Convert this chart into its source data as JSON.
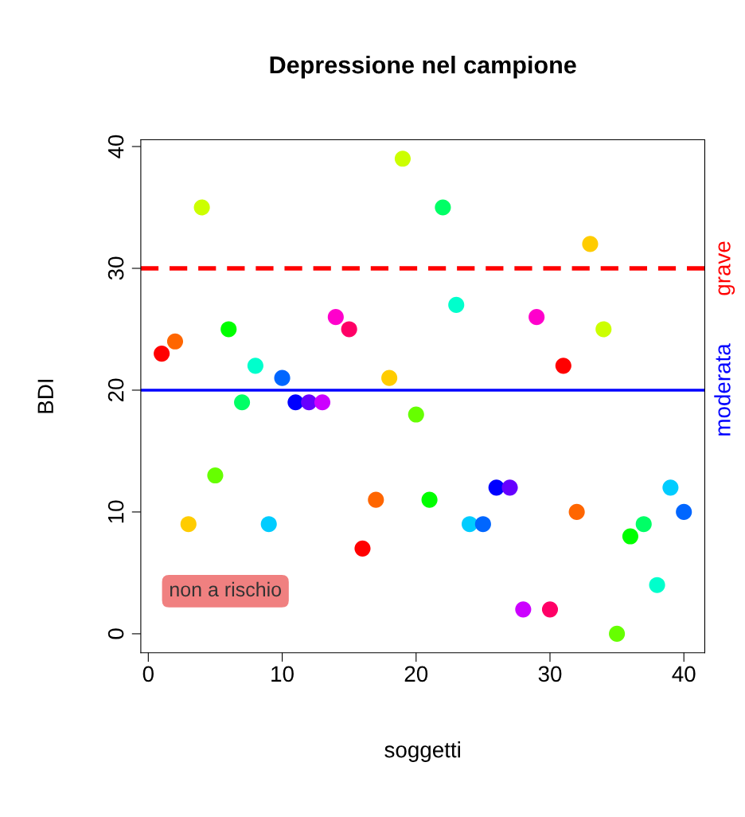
{
  "chart_data": {
    "type": "scatter",
    "title": "Depressione nel campione",
    "xlabel": "soggetti",
    "ylabel": "BDI",
    "x": [
      1,
      2,
      3,
      4,
      5,
      6,
      7,
      8,
      9,
      10,
      11,
      12,
      13,
      14,
      15,
      16,
      17,
      18,
      19,
      20,
      21,
      22,
      23,
      24,
      25,
      26,
      27,
      28,
      29,
      30,
      31,
      32,
      33,
      34,
      35,
      36,
      37,
      38,
      39,
      40
    ],
    "values": [
      23,
      24,
      9,
      35,
      13,
      25,
      19,
      22,
      9,
      21,
      19,
      19,
      19,
      26,
      25,
      7,
      11,
      21,
      39,
      18,
      11,
      35,
      27,
      9,
      9,
      12,
      12,
      2,
      26,
      2,
      22,
      10,
      32,
      25,
      0,
      8,
      9,
      4,
      12,
      10
    ],
    "colors": [
      "#ff0000",
      "#ff6600",
      "#ffcc00",
      "#ccff00",
      "#66ff00",
      "#00ff00",
      "#00ff66",
      "#00ffcc",
      "#00ccff",
      "#0066ff",
      "#0000ff",
      "#6600ff",
      "#cc00ff",
      "#ff00cc",
      "#ff0066",
      "#ff0000",
      "#ff6600",
      "#ffcc00",
      "#ccff00",
      "#66ff00",
      "#00ff00",
      "#00ff66",
      "#00ffcc",
      "#00ccff",
      "#0066ff",
      "#0000ff",
      "#6600ff",
      "#cc00ff",
      "#ff00cc",
      "#ff0066",
      "#ff0000",
      "#ff6600",
      "#ffcc00",
      "#ccff00",
      "#66ff00",
      "#00ff00",
      "#00ff66",
      "#00ffcc",
      "#00ccff",
      "#0066ff"
    ],
    "marker": "circle",
    "xlim": [
      -0.56,
      41.56
    ],
    "ylim": [
      -1.56,
      40.56
    ],
    "xticks": [
      0,
      10,
      20,
      30,
      40
    ],
    "yticks": [
      0,
      10,
      20,
      30,
      40
    ],
    "grid": false,
    "ref_lines": [
      {
        "axis": "y",
        "value": 30,
        "label": "grave",
        "color": "#ff0000",
        "line_style": "dashed"
      },
      {
        "axis": "y",
        "value": 20,
        "label": "moderata",
        "color": "#0000ff",
        "line_style": "solid"
      }
    ],
    "annotations": [
      "non a rischio"
    ]
  }
}
